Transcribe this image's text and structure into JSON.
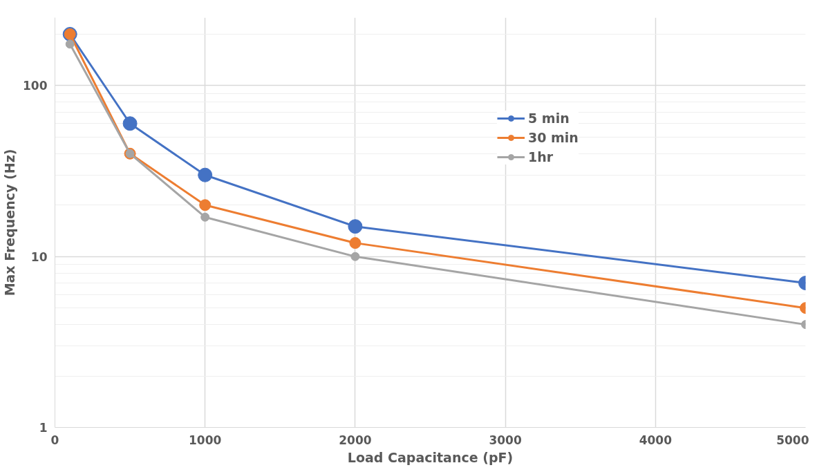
{
  "chart_data": {
    "type": "line",
    "xlabel": "Load Capacitance (pF)",
    "ylabel": "Max Frequency (Hz)",
    "x": [
      100,
      500,
      1000,
      2000,
      5000
    ],
    "series": [
      {
        "name": "5 min",
        "color": "#4472c4",
        "values": [
          200,
          60,
          30,
          15,
          7
        ]
      },
      {
        "name": "30 min",
        "color": "#ed7d31",
        "values": [
          200,
          40,
          20,
          12,
          5
        ]
      },
      {
        "name": "1hr",
        "color": "#a5a5a5",
        "values": [
          175,
          40,
          17,
          10,
          4
        ]
      }
    ],
    "xlim": [
      0,
      5000
    ],
    "xticks": [
      0,
      1000,
      2000,
      3000,
      4000,
      5000
    ],
    "ylim": [
      1,
      250
    ],
    "yticks": [
      1,
      10,
      100
    ],
    "log": "y",
    "grid": true,
    "legend": "top right",
    "marker": "circle",
    "line_style": "solid"
  }
}
